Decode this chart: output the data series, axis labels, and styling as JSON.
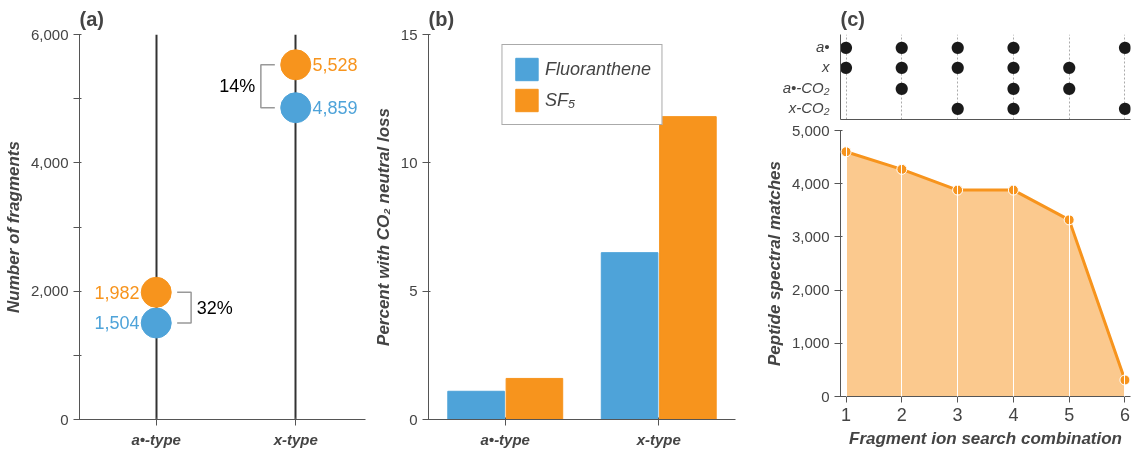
{
  "chart_data": [
    {
      "type": "scatter",
      "title": "(a)",
      "ylabel": "Number of fragments",
      "categories": [
        "a•-type",
        "x-type"
      ],
      "series": [
        {
          "color": "#4ea3d9",
          "values": [
            1504,
            4859
          ],
          "value_labels": [
            "1,504",
            "4,859"
          ]
        },
        {
          "color": "#f7941d",
          "values": [
            1982,
            5528
          ],
          "value_labels": [
            "1,982",
            "5,528"
          ]
        }
      ],
      "ylim": [
        0,
        6000
      ],
      "yticks": [
        {
          "value": 0,
          "label": "0"
        },
        {
          "value": 1000,
          "label": null
        },
        {
          "value": 2000,
          "label": "2,000"
        },
        {
          "value": 3000,
          "label": null
        },
        {
          "value": 4000,
          "label": "4,000"
        },
        {
          "value": 5000,
          "label": null
        },
        {
          "value": 6000,
          "label": "6,000"
        }
      ],
      "annotations": [
        "32%",
        "14%"
      ],
      "grid": "x",
      "marker": "circle"
    },
    {
      "type": "bar",
      "title": "(b)",
      "ylabel": "Percent with CO₂ neutral loss",
      "categories": [
        "a•-type",
        "x-type"
      ],
      "series": [
        {
          "name": "Fluoranthene",
          "color": "#4ea3d9",
          "values": [
            1.1,
            6.5
          ]
        },
        {
          "name": "SF₅",
          "color": "#f7941d",
          "values": [
            1.6,
            11.8
          ]
        }
      ],
      "ylim": [
        0,
        15
      ],
      "yticks": [
        0,
        5,
        10,
        15
      ],
      "legend": "top",
      "grid": false
    },
    {
      "type": "heatmap",
      "title": "(c)",
      "categories": [
        null,
        null,
        null,
        null,
        null,
        null
      ],
      "y_categories": [
        "a•",
        "x",
        "a•-CO₂",
        "x-CO₂"
      ],
      "cells": [
        [
          "●",
          "●",
          "●",
          "●",
          null,
          "●"
        ],
        [
          "●",
          "●",
          "●",
          "●",
          "●",
          null
        ],
        [
          null,
          "●",
          null,
          "●",
          "●",
          null
        ],
        [
          null,
          null,
          "●",
          "●",
          null,
          "●"
        ]
      ],
      "color": "#1a1a1a"
    },
    {
      "type": "area",
      "ylabel": "Peptide spectral matches",
      "xlabel": "Fragment ion search combination",
      "x": [
        1,
        2,
        3,
        4,
        5,
        6
      ],
      "values": [
        4600,
        4270,
        3880,
        3880,
        3320,
        310
      ],
      "color": "#f7941d",
      "xlim": [
        0.9,
        6.1
      ],
      "xticks": [
        1,
        2,
        3,
        4,
        5,
        6
      ],
      "ylim": [
        0,
        5000
      ],
      "yticks": [
        {
          "value": 0,
          "label": "0"
        },
        {
          "value": 1000,
          "label": "1,000"
        },
        {
          "value": 2000,
          "label": "2,000"
        },
        {
          "value": 3000,
          "label": "3,000"
        },
        {
          "value": 4000,
          "label": "4,000"
        },
        {
          "value": 5000,
          "label": "5,000"
        }
      ],
      "grid": "x",
      "marker": "circle"
    }
  ]
}
